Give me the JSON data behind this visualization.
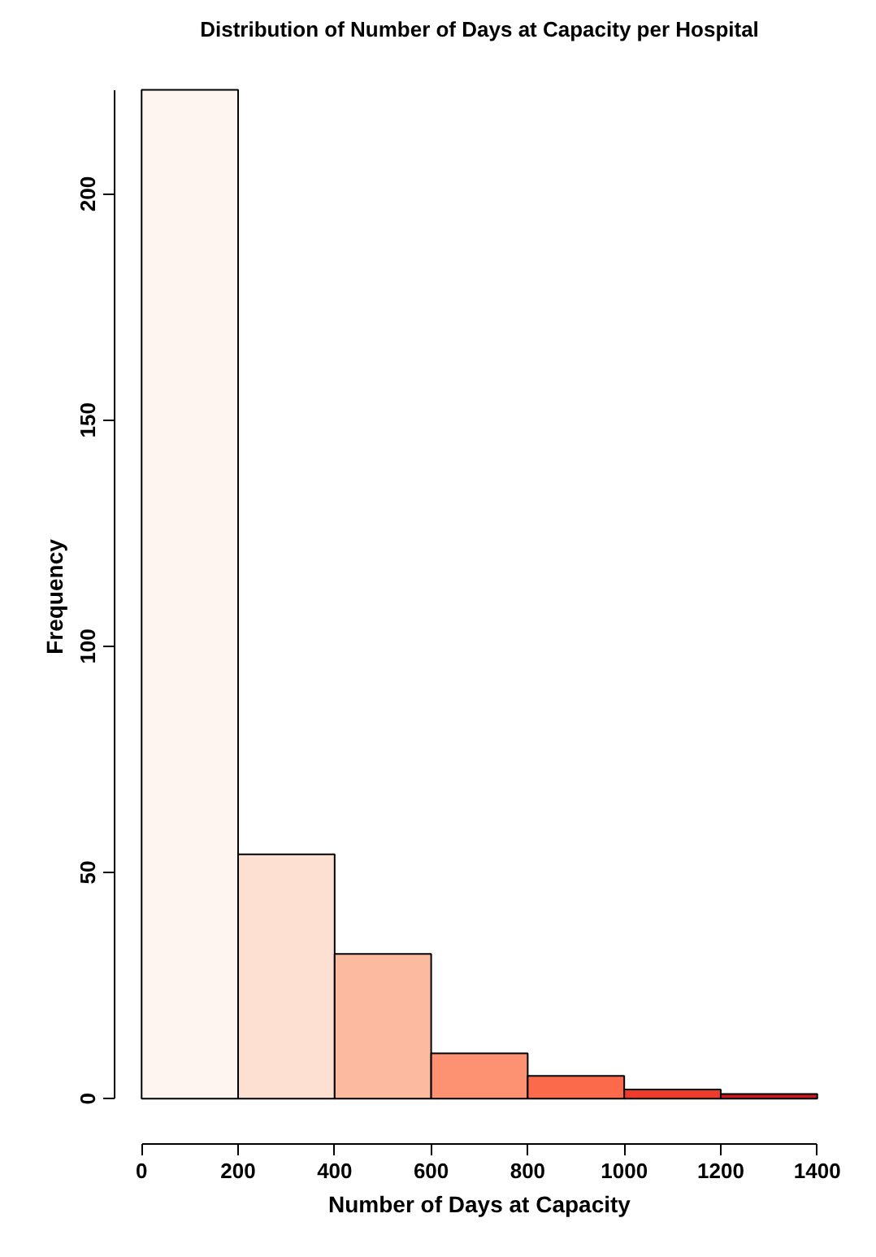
{
  "chart_data": {
    "type": "histogram",
    "title": "Distribution of Number of Days at Capacity per Hospital",
    "xlabel": "Number of Days at Capacity",
    "ylabel": "Frequency",
    "bins": [
      0,
      200,
      400,
      600,
      800,
      1000,
      1200,
      1400
    ],
    "values": [
      223,
      54,
      32,
      10,
      5,
      2,
      1
    ],
    "colors": [
      "#fff5f0",
      "#fee0d2",
      "#fcbba1",
      "#fc9272",
      "#fb6a4a",
      "#ef3b2c",
      "#cb181d"
    ],
    "xlim": [
      0,
      1400
    ],
    "ylim": [
      0,
      223
    ],
    "xticks": [
      0,
      200,
      400,
      600,
      800,
      1000,
      1200,
      1400
    ],
    "yticks": [
      0,
      50,
      100,
      150,
      200
    ],
    "grid": false
  }
}
